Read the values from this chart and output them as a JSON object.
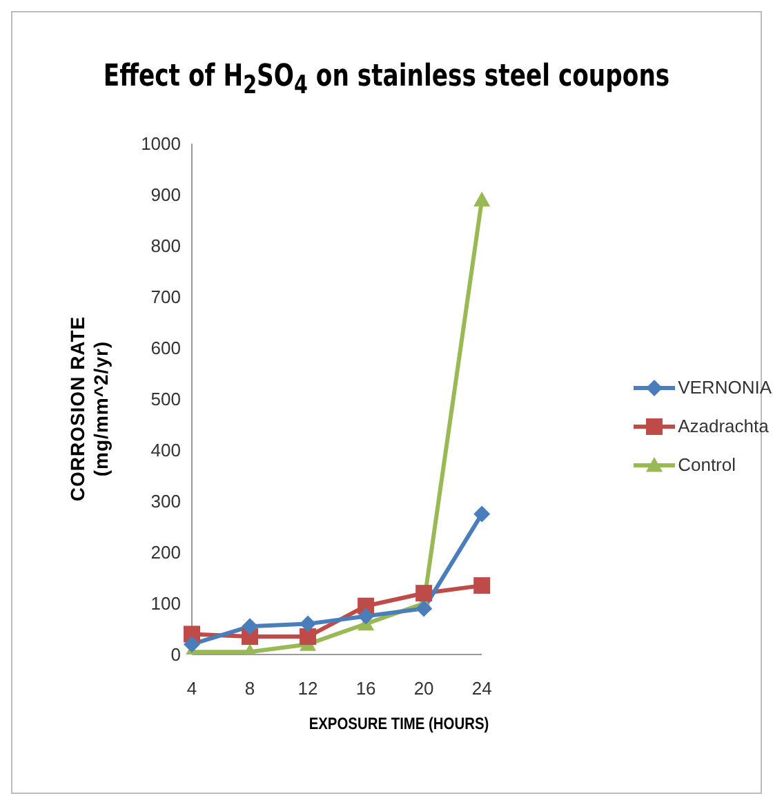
{
  "chart_data": {
    "type": "line",
    "title": "Effect of H$_{2}$SO$_{4}$ on stainless steel coupons",
    "xlabel": "EXPOSURE TIME (HOURS)",
    "ylabel": "CORROSION RATE (mg/mm^2/yr)",
    "categories": [
      "4",
      "8",
      "12",
      "16",
      "20",
      "24"
    ],
    "ylim": [
      0,
      1000
    ],
    "yticks": [
      0,
      100,
      200,
      300,
      400,
      500,
      600,
      700,
      800,
      900,
      1000
    ],
    "grid": false,
    "legend": "right",
    "series": [
      {
        "name": "VERNONIA",
        "color": "#4a7ebb",
        "marker": "diamond",
        "values": [
          20,
          55,
          60,
          75,
          90,
          275
        ]
      },
      {
        "name": "Azadrachta",
        "color": "#be4b48",
        "marker": "square",
        "values": [
          40,
          35,
          35,
          95,
          120,
          135
        ]
      },
      {
        "name": "Control",
        "color": "#98b954",
        "marker": "triangle",
        "values": [
          5,
          5,
          20,
          60,
          100,
          890
        ]
      }
    ]
  }
}
